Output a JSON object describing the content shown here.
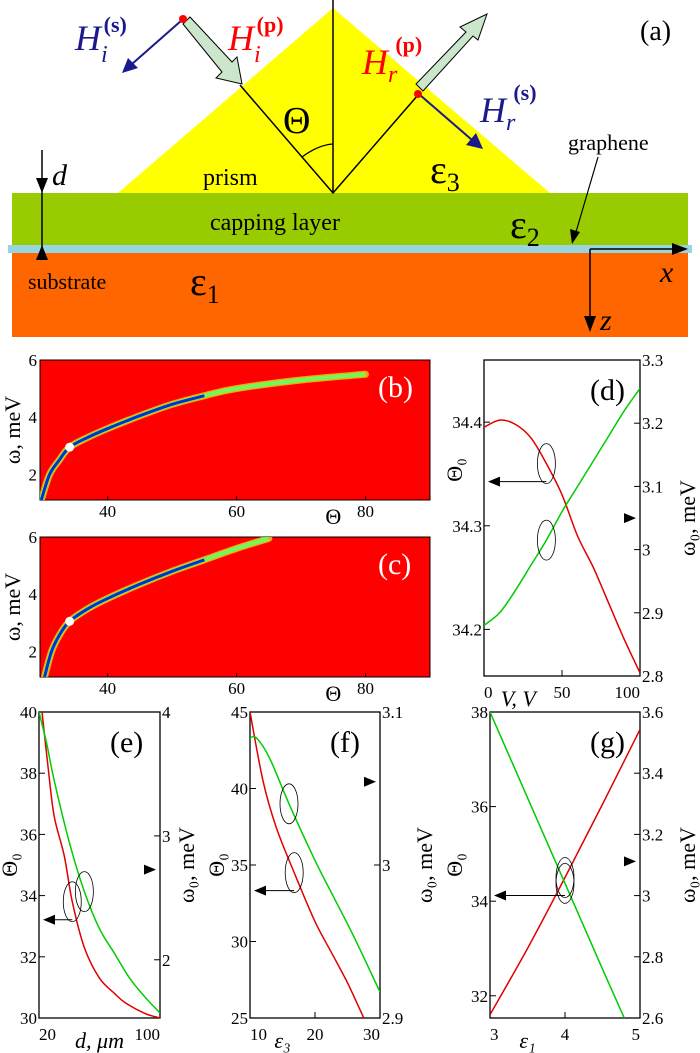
{
  "panel_a": {
    "label": "(a)",
    "prism": "prism",
    "capping_layer": "capping layer",
    "substrate": "substrate",
    "graphene": "graphene",
    "eps1": "ε",
    "eps1_sub": "1",
    "eps2": "ε",
    "eps2_sub": "2",
    "eps3": "ε",
    "eps3_sub": "3",
    "theta": "Θ",
    "d": "d",
    "x": "x",
    "z": "z",
    "Hi_s": "H",
    "Hi_s_sub": "i",
    "Hi_s_sup": "(s)",
    "Hi_p": "H",
    "Hi_p_sub": "i",
    "Hi_p_sup": "(p)",
    "Hr_p": "H",
    "Hr_p_sub": "r",
    "Hr_p_sup": "(p)",
    "Hr_s": "H",
    "Hr_s_sub": "r",
    "Hr_s_sup": "(s)",
    "colors": {
      "prism": "#ffff00",
      "capping": "#99cc00",
      "graphene": "#99d5e0",
      "substrate": "#ff6600",
      "s_pol": "#1a1a8c",
      "p_pol": "#ff0000"
    }
  },
  "chart_data": [
    {
      "id": "b",
      "type": "heatmap",
      "panel_label": "(b)",
      "xlabel": "Θ",
      "ylabel": "ω, meV",
      "xlim": [
        29.5,
        90
      ],
      "ylim": [
        1.1,
        6
      ],
      "xticks": [
        "40",
        "60",
        "80"
      ],
      "xtick_values": [
        40,
        60,
        80
      ],
      "yticks": [
        "2",
        "4",
        "6"
      ],
      "ytick_values": [
        2,
        4,
        6
      ],
      "background_color": "#ff0000",
      "resonance_color": "#0033cc",
      "resonance": [
        [
          29.7,
          1.1
        ],
        [
          31,
          2.0
        ],
        [
          32.5,
          2.5
        ],
        [
          34.1,
          2.95
        ],
        [
          37,
          3.3
        ],
        [
          40,
          3.6
        ],
        [
          45,
          4.05
        ],
        [
          50,
          4.45
        ],
        [
          55,
          4.75
        ],
        [
          60,
          5.0
        ],
        [
          70,
          5.3
        ],
        [
          80,
          5.5
        ]
      ],
      "marker": [
        34.1,
        2.95
      ]
    },
    {
      "id": "c",
      "type": "heatmap",
      "panel_label": "(c)",
      "xlabel": "Θ",
      "ylabel": "ω, meV",
      "xlim": [
        29.5,
        90
      ],
      "ylim": [
        1.1,
        6
      ],
      "xticks": [
        "40",
        "60",
        "80"
      ],
      "xtick_values": [
        40,
        60,
        80
      ],
      "yticks": [
        "2",
        "4",
        "6"
      ],
      "ytick_values": [
        2,
        4,
        6
      ],
      "background_color": "#ff0000",
      "resonance_color": "#0033cc",
      "resonance": [
        [
          30.2,
          1.1
        ],
        [
          31.3,
          2.0
        ],
        [
          32.6,
          2.6
        ],
        [
          34.1,
          3.05
        ],
        [
          37,
          3.5
        ],
        [
          40,
          3.85
        ],
        [
          45,
          4.35
        ],
        [
          50,
          4.8
        ],
        [
          55,
          5.2
        ],
        [
          60,
          5.6
        ],
        [
          65,
          5.95
        ]
      ],
      "marker": [
        34.1,
        3.05
      ]
    },
    {
      "id": "d",
      "type": "line",
      "panel_label": "(d)",
      "xlabel": "V, V",
      "ylabel_left": "Θ₀",
      "ylabel_right": "ω₀, meV",
      "xlim": [
        0,
        100
      ],
      "ylim_left": [
        34.155,
        34.46
      ],
      "ylim_right": [
        2.8,
        3.3
      ],
      "xticks": [
        "0",
        "50",
        "100"
      ],
      "xtick_values": [
        0,
        50,
        100
      ],
      "yticks_left": [
        "34.2",
        "34.3",
        "34.4"
      ],
      "ytick_values_left": [
        34.2,
        34.3,
        34.4
      ],
      "yticks_right": [
        "2.8",
        "2.9",
        "3",
        "3.1",
        "3.2",
        "3.3"
      ],
      "ytick_values_right": [
        2.8,
        2.9,
        3,
        3.1,
        3.2,
        3.3
      ],
      "series": [
        {
          "axis": "left",
          "color": "#e00000",
          "points": [
            [
              0,
              34.395
            ],
            [
              10,
              34.402
            ],
            [
              20,
              34.398
            ],
            [
              30,
              34.385
            ],
            [
              40,
              34.36
            ],
            [
              50,
              34.33
            ],
            [
              60,
              34.29
            ],
            [
              70,
              34.26
            ],
            [
              80,
              34.225
            ],
            [
              90,
              34.19
            ],
            [
              100,
              34.158
            ]
          ]
        },
        {
          "axis": "right",
          "color": "#00cc00",
          "points": [
            [
              0,
              2.88
            ],
            [
              10,
              2.9
            ],
            [
              20,
              2.935
            ],
            [
              30,
              2.975
            ],
            [
              40,
              3.015
            ],
            [
              50,
              3.06
            ],
            [
              60,
              3.1
            ],
            [
              70,
              3.14
            ],
            [
              80,
              3.18
            ],
            [
              90,
              3.22
            ],
            [
              100,
              3.255
            ]
          ]
        }
      ]
    },
    {
      "id": "e",
      "type": "line",
      "panel_label": "(e)",
      "xlabel": "d, μm",
      "ylabel_left": "Θ₀",
      "ylabel_right": "ω₀, meV",
      "xlim": [
        20,
        100
      ],
      "ylim_left": [
        30,
        40
      ],
      "ylim_right": [
        1.53,
        4
      ],
      "xticks": [
        "20",
        "100"
      ],
      "xtick_values": [
        20,
        100
      ],
      "yticks_left": [
        "30",
        "32",
        "34",
        "36",
        "38",
        "40"
      ],
      "ytick_values_left": [
        30,
        32,
        34,
        36,
        38,
        40
      ],
      "yticks_right": [
        "2",
        "3",
        "4"
      ],
      "ytick_values_right": [
        2,
        3,
        4
      ],
      "series": [
        {
          "axis": "left",
          "color": "#e00000",
          "points": [
            [
              22,
              40
            ],
            [
              26,
              38.2
            ],
            [
              30,
              36.6
            ],
            [
              36.7,
              35.3
            ],
            [
              42,
              33.8
            ],
            [
              50,
              32.3
            ],
            [
              60,
              31.3
            ],
            [
              70,
              30.8
            ],
            [
              77,
              30.5
            ],
            [
              90,
              30.15
            ],
            [
              100,
              30
            ]
          ]
        },
        {
          "axis": "right",
          "color": "#00cc00",
          "points": [
            [
              20,
              4
            ],
            [
              25,
              3.75
            ],
            [
              30,
              3.45
            ],
            [
              40,
              2.95
            ],
            [
              50,
              2.55
            ],
            [
              60,
              2.25
            ],
            [
              70,
              2.05
            ],
            [
              80,
              1.85
            ],
            [
              90,
              1.7
            ],
            [
              100,
              1.57
            ]
          ]
        }
      ]
    },
    {
      "id": "f",
      "type": "line",
      "panel_label": "(f)",
      "xlabel": "ε₃",
      "ylabel_left": "Θ₀",
      "ylabel_right": "ω₀, meV",
      "xlim": [
        10,
        30
      ],
      "ylim_left": [
        25,
        45
      ],
      "ylim_right": [
        2.9,
        3.1
      ],
      "xticks": [
        "10",
        "20",
        "30"
      ],
      "xtick_values": [
        10,
        20,
        30
      ],
      "yticks_left": [
        "25",
        "30",
        "35",
        "40",
        "45"
      ],
      "ytick_values_left": [
        25,
        30,
        35,
        40,
        45
      ],
      "yticks_right": [
        "2.9",
        "3",
        "3.1"
      ],
      "ytick_values_right": [
        2.9,
        3,
        3.1
      ],
      "series": [
        {
          "axis": "left",
          "color": "#e00000",
          "points": [
            [
              10,
              45
            ],
            [
              12,
              40.5
            ],
            [
              14,
              37.5
            ],
            [
              16.8,
              34.5
            ],
            [
              20,
              31.3
            ],
            [
              22.5,
              29.3
            ],
            [
              25,
              27.3
            ],
            [
              27.5,
              25
            ]
          ]
        },
        {
          "axis": "right",
          "color": "#00cc00",
          "points": [
            [
              10,
              3.083
            ],
            [
              11,
              3.083
            ],
            [
              13,
              3.07
            ],
            [
              16,
              3.04
            ],
            [
              20,
              3.003
            ],
            [
              23,
              2.978
            ],
            [
              26,
              2.953
            ],
            [
              30,
              2.917
            ]
          ]
        }
      ]
    },
    {
      "id": "g",
      "type": "line",
      "panel_label": "(g)",
      "xlabel": "ε₁",
      "ylabel_left": "Θ₀",
      "ylabel_right": "ω₀, meV",
      "xlim": [
        3,
        5
      ],
      "ylim_left": [
        31.53,
        38
      ],
      "ylim_right": [
        2.6,
        3.6
      ],
      "xticks": [
        "3",
        "4",
        "5"
      ],
      "xtick_values": [
        3,
        4,
        5
      ],
      "yticks_left": [
        "32",
        "34",
        "36",
        "38"
      ],
      "ytick_values_left": [
        32,
        34,
        36,
        38
      ],
      "yticks_right": [
        "2.6",
        "2.8",
        "3",
        "3.2",
        "3.4",
        "3.6"
      ],
      "ytick_values_right": [
        2.6,
        2.8,
        3,
        3.2,
        3.4,
        3.6
      ],
      "series": [
        {
          "axis": "left",
          "color": "#e00000",
          "points": [
            [
              3,
              31.6
            ],
            [
              3.5,
              33.0
            ],
            [
              4,
              34.5
            ],
            [
              4.5,
              36.05
            ],
            [
              5,
              37.63
            ]
          ]
        },
        {
          "axis": "right",
          "color": "#00cc00",
          "points": [
            [
              3,
              3.6
            ],
            [
              3.5,
              3.32
            ],
            [
              4,
              3.04
            ],
            [
              4.5,
              2.76
            ],
            [
              4.79,
              2.6
            ]
          ]
        }
      ]
    }
  ]
}
